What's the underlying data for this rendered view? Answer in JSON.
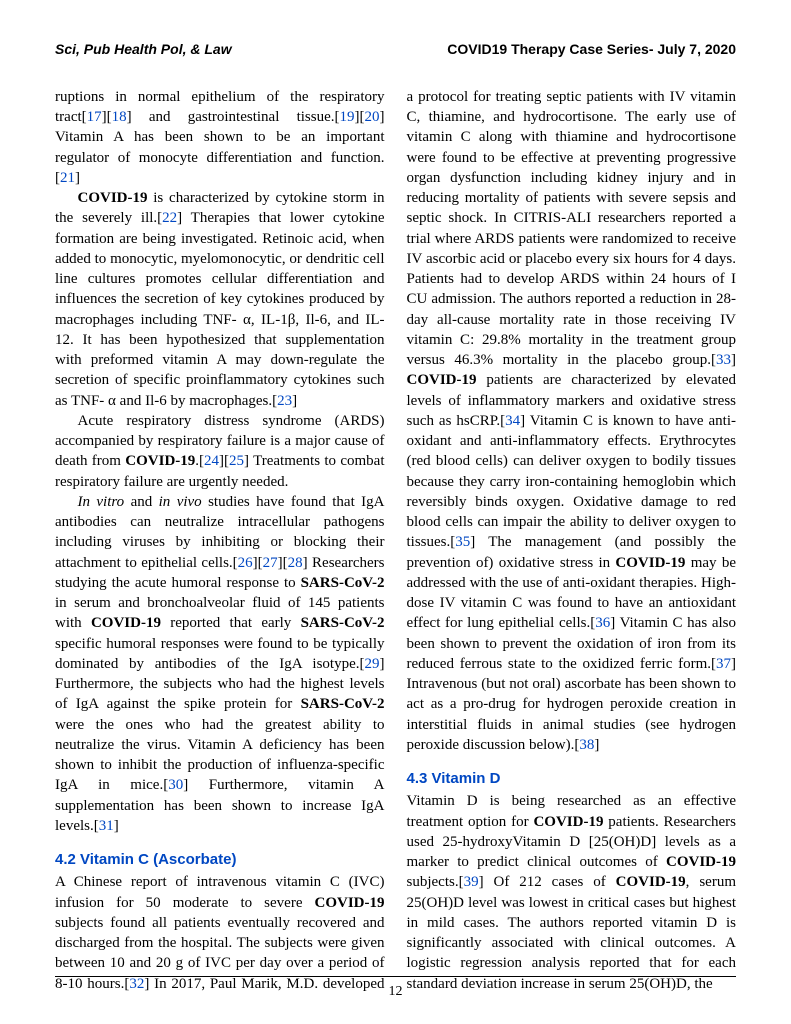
{
  "header": {
    "left": "Sci, Pub Health Pol, & Law",
    "right": "COVID19 Therapy Case Series- July 7, 2020"
  },
  "footer": {
    "pagenum": "12"
  },
  "refs": {
    "r17": "17",
    "r18": "18",
    "r19": "19",
    "r20": "20",
    "r21": "21",
    "r22": "22",
    "r23": "23",
    "r24": "24",
    "r25": "25",
    "r26": "26",
    "r27": "27",
    "r28": "28",
    "r29": "29",
    "r30": "30",
    "r31": "31",
    "r32": "32",
    "r33": "33",
    "r34": "34",
    "r35": "35",
    "r36": "36",
    "r37": "37",
    "r38": "38",
    "r39": "39"
  },
  "sections": {
    "s42": "4.2  Vitamin C (Ascorbate)",
    "s43": "4.3  Vitamin D"
  },
  "body": {
    "p1a": "ruptions in normal epithelium of the respiratory tract[",
    "p1b": "][",
    "p1c": "] and gastrointestinal tissue.[",
    "p1d": "][",
    "p1e": "] Vitamin A has been shown to be an important regulator of monocyte differentiation and function.[",
    "p1f": "]",
    "p2a": "COVID-19",
    "p2b": " is characterized by cytokine storm in the severely ill.[",
    "p2c": "] Therapies that lower cytokine formation are being investigated. Retinoic acid, when added to monocytic, myelomonocytic, or dendritic cell line cultures promotes cellular differentiation and influences the secretion of key cytokines produced by macrophages including TNF- α, IL-1β, Il-6, and IL-12. It has been hypothesized that supplementation with preformed vitamin A may down-regulate the secretion of specific proinflammatory cytokines such as TNF- α and Il-6 by macrophages.[",
    "p2d": "]",
    "p3a": "Acute respiratory distress syndrome (ARDS) accompanied by respiratory failure is a major cause of death from ",
    "p3b": "COVID-19",
    "p3c": ".[",
    "p3d": "][",
    "p3e": "] Treatments to combat respiratory failure are urgently needed.",
    "p4a": "In vitro",
    "p4b": " and ",
    "p4c": "in vivo",
    "p4d": " studies have found that IgA antibodies can neutralize intracellular pathogens including viruses by inhibiting or blocking their attachment to epithelial cells.[",
    "p4e": "][",
    "p4f": "][",
    "p4g": "] Researchers studying the acute humoral response to ",
    "p4h": "SARS-CoV-2",
    "p4i": " in serum and bronchoalveolar fluid of 145 patients with ",
    "p4j": "COVID-19",
    "p4k": " reported that early ",
    "p4l": "SARS-CoV-2",
    "p4m": " specific humoral responses were found to be typically dominated by antibodies of the IgA isotype.[",
    "p4n": "] Furthermore, the subjects who had the highest levels of IgA against the spike protein for ",
    "p4o": "SARS-CoV-2",
    "p4p": " were the ones who had the greatest ability to neutralize the virus. Vitamin A deficiency has been shown to inhibit the production of influenza-specific IgA in mice.[",
    "p4q": "] Furthermore, vitamin A supplementation has been shown to increase IgA levels.[",
    "p4r": "]",
    "p5a": "A Chinese report of intravenous vitamin C (IVC) infusion for 50 moderate to severe ",
    "p5b": "COVID-19",
    "p5c": " subjects found all patients eventually recovered and discharged from the hospital. The subjects were given between 10 and 20 g of IVC per day over a period of 8-10 hours.[",
    "p5d": "] In 2017, Paul Marik, M.D. developed a protocol for treating septic patients with IV vitamin C, thiamine, and hydrocortisone. The early use of vitamin C along with thiamine and hydrocortisone were found to be effective at preventing progressive organ dysfunction including kidney injury and in reducing mortality of patients with severe sepsis and septic shock. In CITRIS-ALI researchers reported a trial where ARDS patients were randomized to receive IV ascorbic acid or placebo every six hours for 4 days. Patients had to develop ARDS within 24 hours of I CU admission. The authors reported a reduction in 28-day all-cause mortality rate in those receiving IV vitamin C: 29.8% mortality in the treatment group versus 46.3% mortality in the placebo group.[",
    "p5e": "] ",
    "p5f": "COVID-19",
    "p5g": " patients are characterized by elevated levels of inflammatory markers and oxidative stress such as hsCRP.[",
    "p5h": "] Vitamin C is known to have anti-oxidant and anti-inflammatory effects. Erythrocytes (red blood cells) can deliver oxygen to bodily tissues because they carry iron-containing hemoglobin which reversibly binds oxygen. Oxidative damage to red blood cells can impair the ability to deliver oxygen to tissues.[",
    "p5i": "] The management (and possibly the prevention of) oxidative stress in ",
    "p5j": "COVID-19",
    "p5k": " may be addressed with the use of anti-oxidant therapies. High-dose IV vitamin C was found to have an antioxidant effect for lung epithelial cells.[",
    "p5l": "] Vitamin C has also been shown to prevent the oxidation of iron from its reduced ferrous state to the oxidized ferric form.[",
    "p5m": "] Intravenous (but not oral) ascorbate has been shown to act as a pro-drug for hydrogen peroxide creation in interstitial fluids in animal studies (see hydrogen peroxide discussion below).[",
    "p5n": "]",
    "p6a": "Vitamin D is being researched as an effective treatment option for ",
    "p6b": "COVID-19",
    "p6c": " patients. Researchers used 25-hydroxyVitamin D [25(OH)D] levels as a marker to predict clinical outcomes of ",
    "p6d": "COVID-19",
    "p6e": " subjects.[",
    "p6f": "] Of 212 cases of ",
    "p6g": "COVID-19",
    "p6h": ", serum 25(OH)D level was lowest in critical cases but highest in mild cases. The authors reported vitamin D is significantly associated with clinical outcomes. A logistic regression analysis reported that for each standard deviation increase in serum 25(OH)D, the"
  },
  "style": {
    "fontsize_body": 15,
    "fontsize_header": 14,
    "link_color": "#0047c2",
    "bg_color": "#ffffff",
    "text_color": "#000000"
  }
}
